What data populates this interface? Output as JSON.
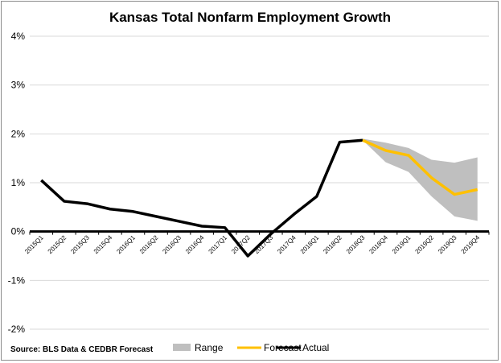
{
  "chart_data": {
    "type": "line",
    "title": "Kansas Total Nonfarm Employment Growth",
    "source": "Source: BLS Data & CEDBR Forecast",
    "categories": [
      "2015Q1",
      "2015Q2",
      "2015Q3",
      "2015Q4",
      "2016Q1",
      "2016Q2",
      "2016Q3",
      "2016Q4",
      "2017Q1",
      "2017Q2",
      "2017Q3",
      "2017Q4",
      "2018Q1",
      "2018Q2",
      "2018Q3",
      "2018Q4",
      "2019Q1",
      "2019Q2",
      "2019Q3",
      "2019Q4"
    ],
    "y_ticks": [
      "4%",
      "3%",
      "2%",
      "1%",
      "0%",
      "-1%",
      "-2%"
    ],
    "ylim": [
      -2,
      4
    ],
    "grid": true,
    "legend_position": "bottom",
    "legend": [
      "Range",
      "Forecast",
      "Actual"
    ],
    "colors": {
      "range": "#bfbfbf",
      "forecast": "#ffc000",
      "actual": "#000000"
    },
    "series": [
      {
        "name": "Actual",
        "values": [
          1.05,
          0.62,
          0.57,
          0.46,
          0.41,
          0.31,
          0.21,
          0.11,
          0.08,
          -0.5,
          -0.05,
          0.35,
          0.72,
          1.83,
          1.87,
          null,
          null,
          null,
          null,
          null
        ]
      },
      {
        "name": "Forecast",
        "values": [
          null,
          null,
          null,
          null,
          null,
          null,
          null,
          null,
          null,
          null,
          null,
          null,
          null,
          null,
          1.87,
          1.66,
          1.56,
          1.1,
          0.76,
          0.86
        ]
      },
      {
        "name": "Range",
        "lower": [
          null,
          null,
          null,
          null,
          null,
          null,
          null,
          null,
          null,
          null,
          null,
          null,
          null,
          null,
          1.87,
          1.42,
          1.22,
          0.72,
          0.31,
          0.22
        ],
        "upper": [
          null,
          null,
          null,
          null,
          null,
          null,
          null,
          null,
          null,
          null,
          null,
          null,
          null,
          null,
          1.9,
          1.82,
          1.71,
          1.47,
          1.41,
          1.52
        ]
      }
    ]
  }
}
